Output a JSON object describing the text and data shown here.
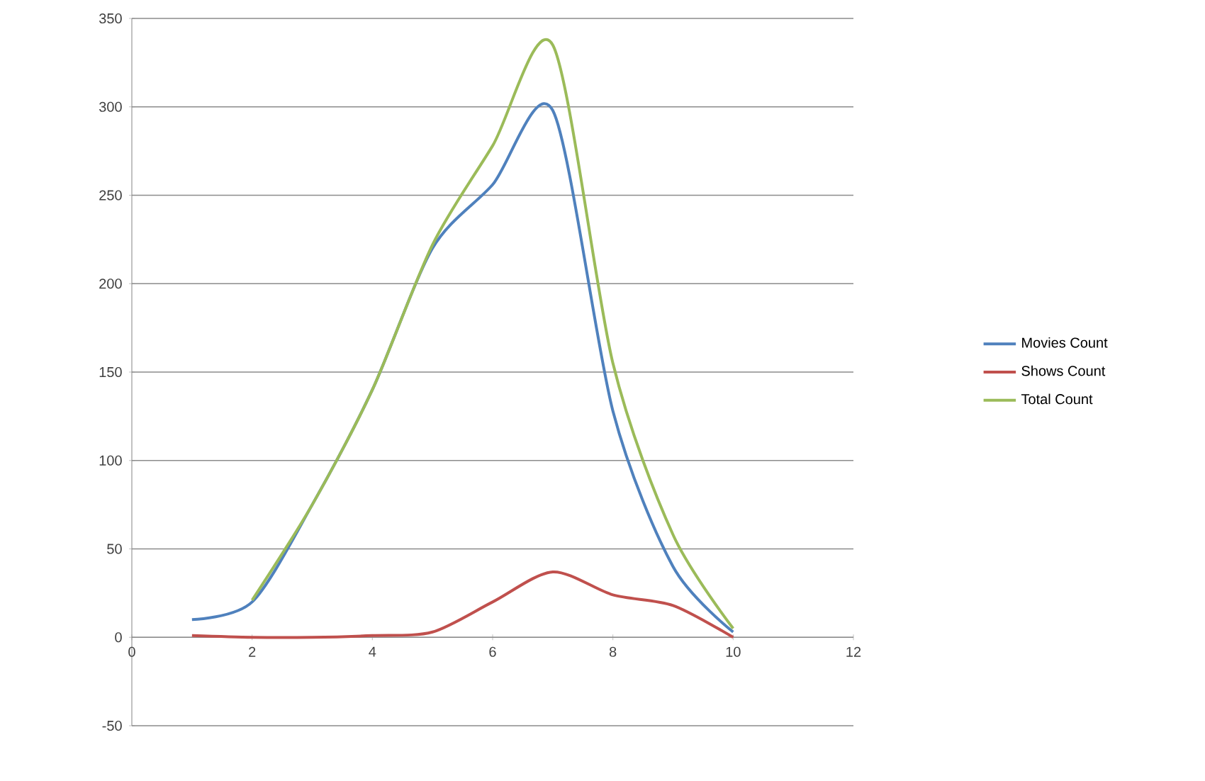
{
  "chart_data": {
    "type": "line",
    "x": [
      1,
      2,
      3,
      4,
      5,
      6,
      7,
      8,
      9,
      10
    ],
    "series": [
      {
        "name": "Movies Count",
        "color": "#4f81bd",
        "values": [
          10,
          20,
          75,
          140,
          220,
          256,
          298,
          128,
          40,
          3
        ]
      },
      {
        "name": "Shows Count",
        "color": "#c0504d",
        "values": [
          1,
          0,
          0,
          1,
          3,
          20,
          37,
          24,
          18,
          0
        ]
      },
      {
        "name": "Total Count",
        "color": "#9bbb59",
        "values": [
          null,
          21,
          75,
          140,
          222,
          278,
          335,
          155,
          58,
          5
        ]
      }
    ],
    "xlim": [
      0,
      12
    ],
    "xticks": [
      0,
      2,
      4,
      6,
      8,
      10,
      12
    ],
    "ylim": [
      -50,
      350
    ],
    "yticks": [
      -50,
      0,
      50,
      100,
      150,
      200,
      250,
      300,
      350
    ],
    "grid": "y",
    "legend": "right",
    "marker": "none",
    "line_style": "solid"
  }
}
